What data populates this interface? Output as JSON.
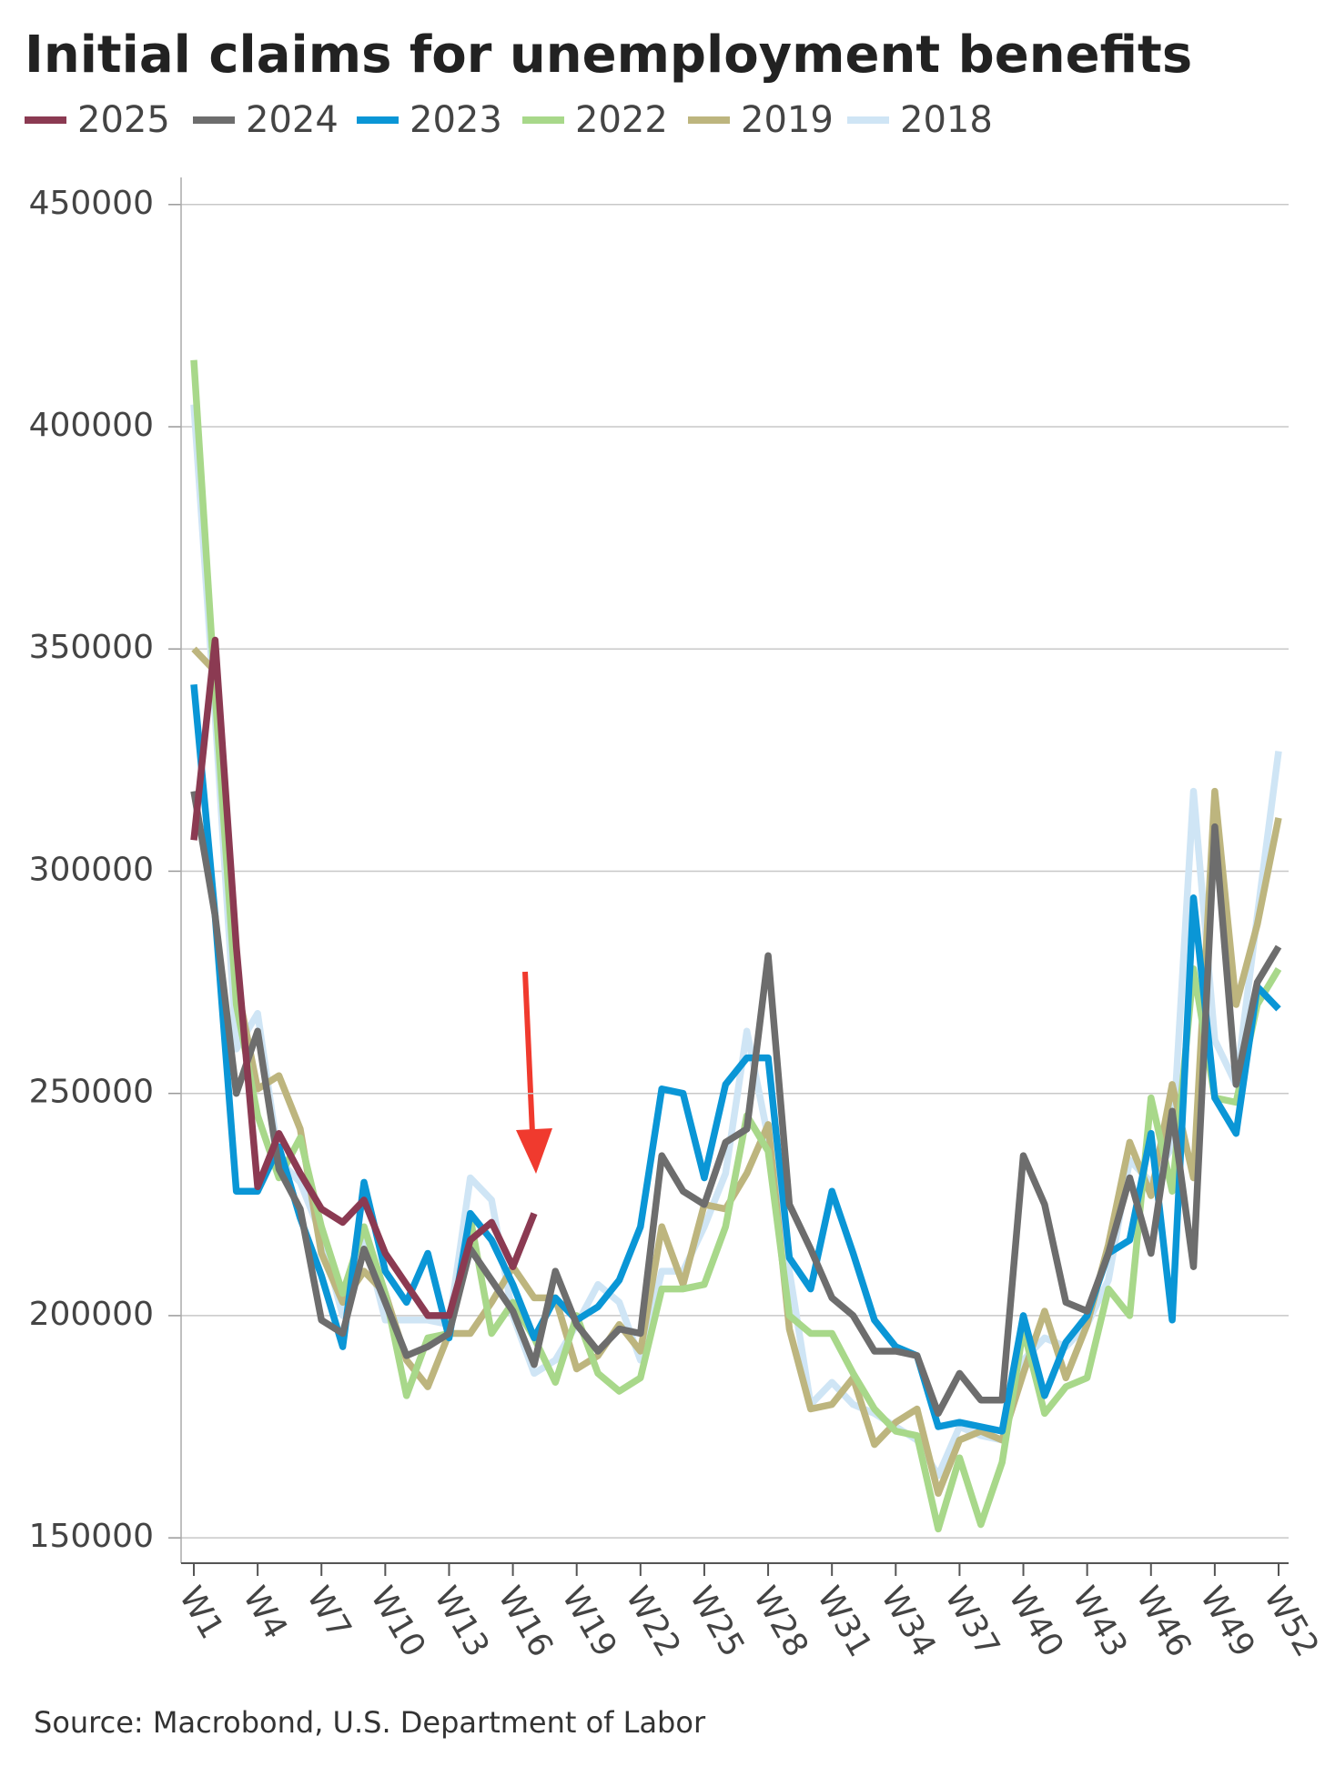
{
  "chart_data": {
    "type": "line",
    "title": "Initial claims for unemployment benefits",
    "source": "Source: Macrobond, U.S. Department of Labor",
    "categories": [
      "W1",
      null,
      null,
      "W4",
      null,
      null,
      "W7",
      null,
      null,
      "W10",
      null,
      null,
      "W13",
      null,
      null,
      "W16",
      null,
      null,
      "W19",
      null,
      null,
      "W22",
      null,
      null,
      "W25",
      null,
      null,
      "W28",
      null,
      null,
      "W31",
      null,
      null,
      "W34",
      null,
      null,
      "W37",
      null,
      null,
      "W40",
      null,
      null,
      "W43",
      null,
      null,
      "W46",
      null,
      null,
      "W49",
      null,
      null,
      "W52"
    ],
    "ylim": [
      144300,
      456100
    ],
    "yticks": [
      150000,
      200000,
      250000,
      300000,
      350000,
      400000,
      450000
    ],
    "grid": true,
    "legend": "top",
    "series": [
      {
        "name": "2025",
        "color": "#8b3a52",
        "values": [
          307000,
          352000,
          283000,
          229000,
          241000,
          232000,
          224000,
          221000,
          226000,
          214000,
          207000,
          200000,
          200000,
          217000,
          221000,
          211000,
          223000,
          null,
          null,
          null,
          null,
          null,
          null,
          null,
          null,
          null,
          null,
          null,
          null,
          null,
          null,
          null,
          null,
          null,
          null,
          null,
          null,
          null,
          null,
          null,
          null,
          null,
          null,
          null,
          null,
          null,
          null,
          null,
          null,
          null,
          null,
          null
        ]
      },
      {
        "name": "2024",
        "color": "#6d6d6d",
        "values": [
          318000,
          290000,
          250000,
          264000,
          233000,
          224000,
          199000,
          196000,
          215000,
          203000,
          191000,
          193000,
          196000,
          215000,
          208000,
          201000,
          189000,
          210000,
          198000,
          192000,
          197000,
          196000,
          236000,
          228000,
          225000,
          239000,
          242000,
          281000,
          225000,
          215000,
          204000,
          200000,
          192000,
          192000,
          191000,
          178000,
          187000,
          181000,
          181000,
          236000,
          225000,
          203000,
          201000,
          214000,
          231000,
          214000,
          246000,
          211000,
          310000,
          252000,
          275000,
          283000
        ]
      },
      {
        "name": "2023",
        "color": "#0a96d6",
        "values": [
          342000,
          290000,
          228000,
          228000,
          238000,
          222000,
          209000,
          193000,
          230000,
          210000,
          203000,
          214000,
          195000,
          223000,
          217000,
          207000,
          195000,
          204000,
          199000,
          202000,
          208000,
          220000,
          251000,
          250000,
          231000,
          252000,
          258000,
          258000,
          213000,
          206000,
          228000,
          214000,
          199000,
          193000,
          191000,
          175000,
          176000,
          175000,
          174000,
          200000,
          182000,
          194000,
          200000,
          214000,
          217000,
          241000,
          199000,
          294000,
          249000,
          241000,
          274000,
          269000
        ]
      },
      {
        "name": "2022",
        "color": "#a8d88a",
        "values": [
          415000,
          340000,
          270000,
          245000,
          231000,
          240000,
          220000,
          205000,
          220000,
          205000,
          182000,
          195000,
          196000,
          222000,
          196000,
          203000,
          195000,
          185000,
          200000,
          187000,
          183000,
          186000,
          206000,
          206000,
          207000,
          220000,
          245000,
          237000,
          200000,
          196000,
          196000,
          187000,
          179000,
          174000,
          173000,
          152000,
          168000,
          153000,
          167000,
          197000,
          178000,
          184000,
          186000,
          206000,
          200000,
          249000,
          228000,
          278000,
          249000,
          248000,
          270000,
          278000
        ]
      },
      {
        "name": "2019",
        "color": "#bdb57e",
        "values": [
          350000,
          345000,
          275000,
          251000,
          254000,
          242000,
          214000,
          203000,
          210000,
          205000,
          190000,
          184000,
          196000,
          196000,
          203000,
          211000,
          204000,
          204000,
          188000,
          191000,
          198000,
          192000,
          220000,
          207000,
          225000,
          224000,
          232000,
          243000,
          197000,
          179000,
          180000,
          186000,
          171000,
          176000,
          179000,
          160000,
          172000,
          174000,
          172000,
          187000,
          201000,
          186000,
          198000,
          216000,
          239000,
          227000,
          252000,
          231000,
          318000,
          270000,
          288000,
          312000
        ]
      },
      {
        "name": "2018",
        "color": "#cfe5f5",
        "values": [
          405000,
          335000,
          260000,
          268000,
          235000,
          230000,
          218000,
          200000,
          218000,
          199000,
          199000,
          199000,
          198000,
          231000,
          226000,
          200000,
          187000,
          190000,
          198000,
          207000,
          203000,
          190000,
          210000,
          210000,
          220000,
          232000,
          264000,
          240000,
          210000,
          180000,
          185000,
          180000,
          178000,
          175000,
          172000,
          164000,
          175000,
          173000,
          172000,
          190000,
          195000,
          193000,
          198000,
          208000,
          235000,
          230000,
          238000,
          318000,
          262000,
          252000,
          290000,
          327000
        ]
      }
    ]
  }
}
